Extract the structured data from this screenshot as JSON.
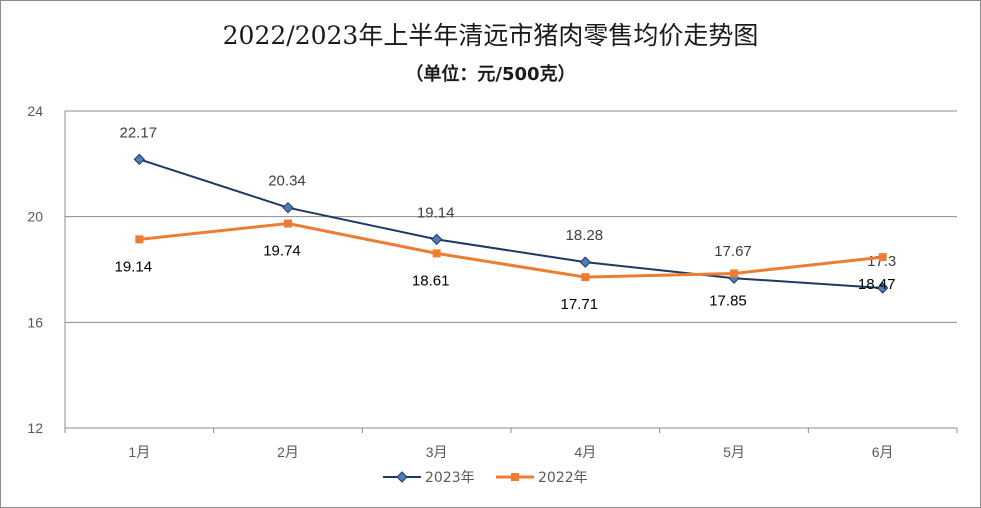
{
  "chart_data": {
    "type": "line",
    "title": "2022/2023年上半年清远市猪肉零售均价走势图",
    "subtitle": "（单位：元/500克）",
    "categories": [
      "1月",
      "2月",
      "3月",
      "4月",
      "5月",
      "6月"
    ],
    "series": [
      {
        "name": "2023年",
        "values": [
          22.17,
          20.34,
          19.14,
          18.28,
          17.67,
          17.3
        ],
        "color": "#1f3864",
        "marker": "diamond",
        "label_pos": "above"
      },
      {
        "name": "2022年",
        "values": [
          19.14,
          19.74,
          18.61,
          17.71,
          17.85,
          18.47
        ],
        "color": "#ed7d31",
        "marker": "square",
        "label_pos": "below"
      }
    ],
    "data_labels": {
      "2023年": [
        "22.17",
        "20.34",
        "19.14",
        "18.28",
        "17.67",
        "17.3"
      ],
      "2022年": [
        "19.14",
        "19.74",
        "18.61",
        "17.71",
        "17.85",
        "18.47"
      ]
    },
    "y_ticks": [
      "12",
      "16",
      "20",
      "24"
    ],
    "ylim": [
      12,
      24
    ],
    "grid": true,
    "legend_position": "bottom",
    "xlabel": "",
    "ylabel": ""
  }
}
